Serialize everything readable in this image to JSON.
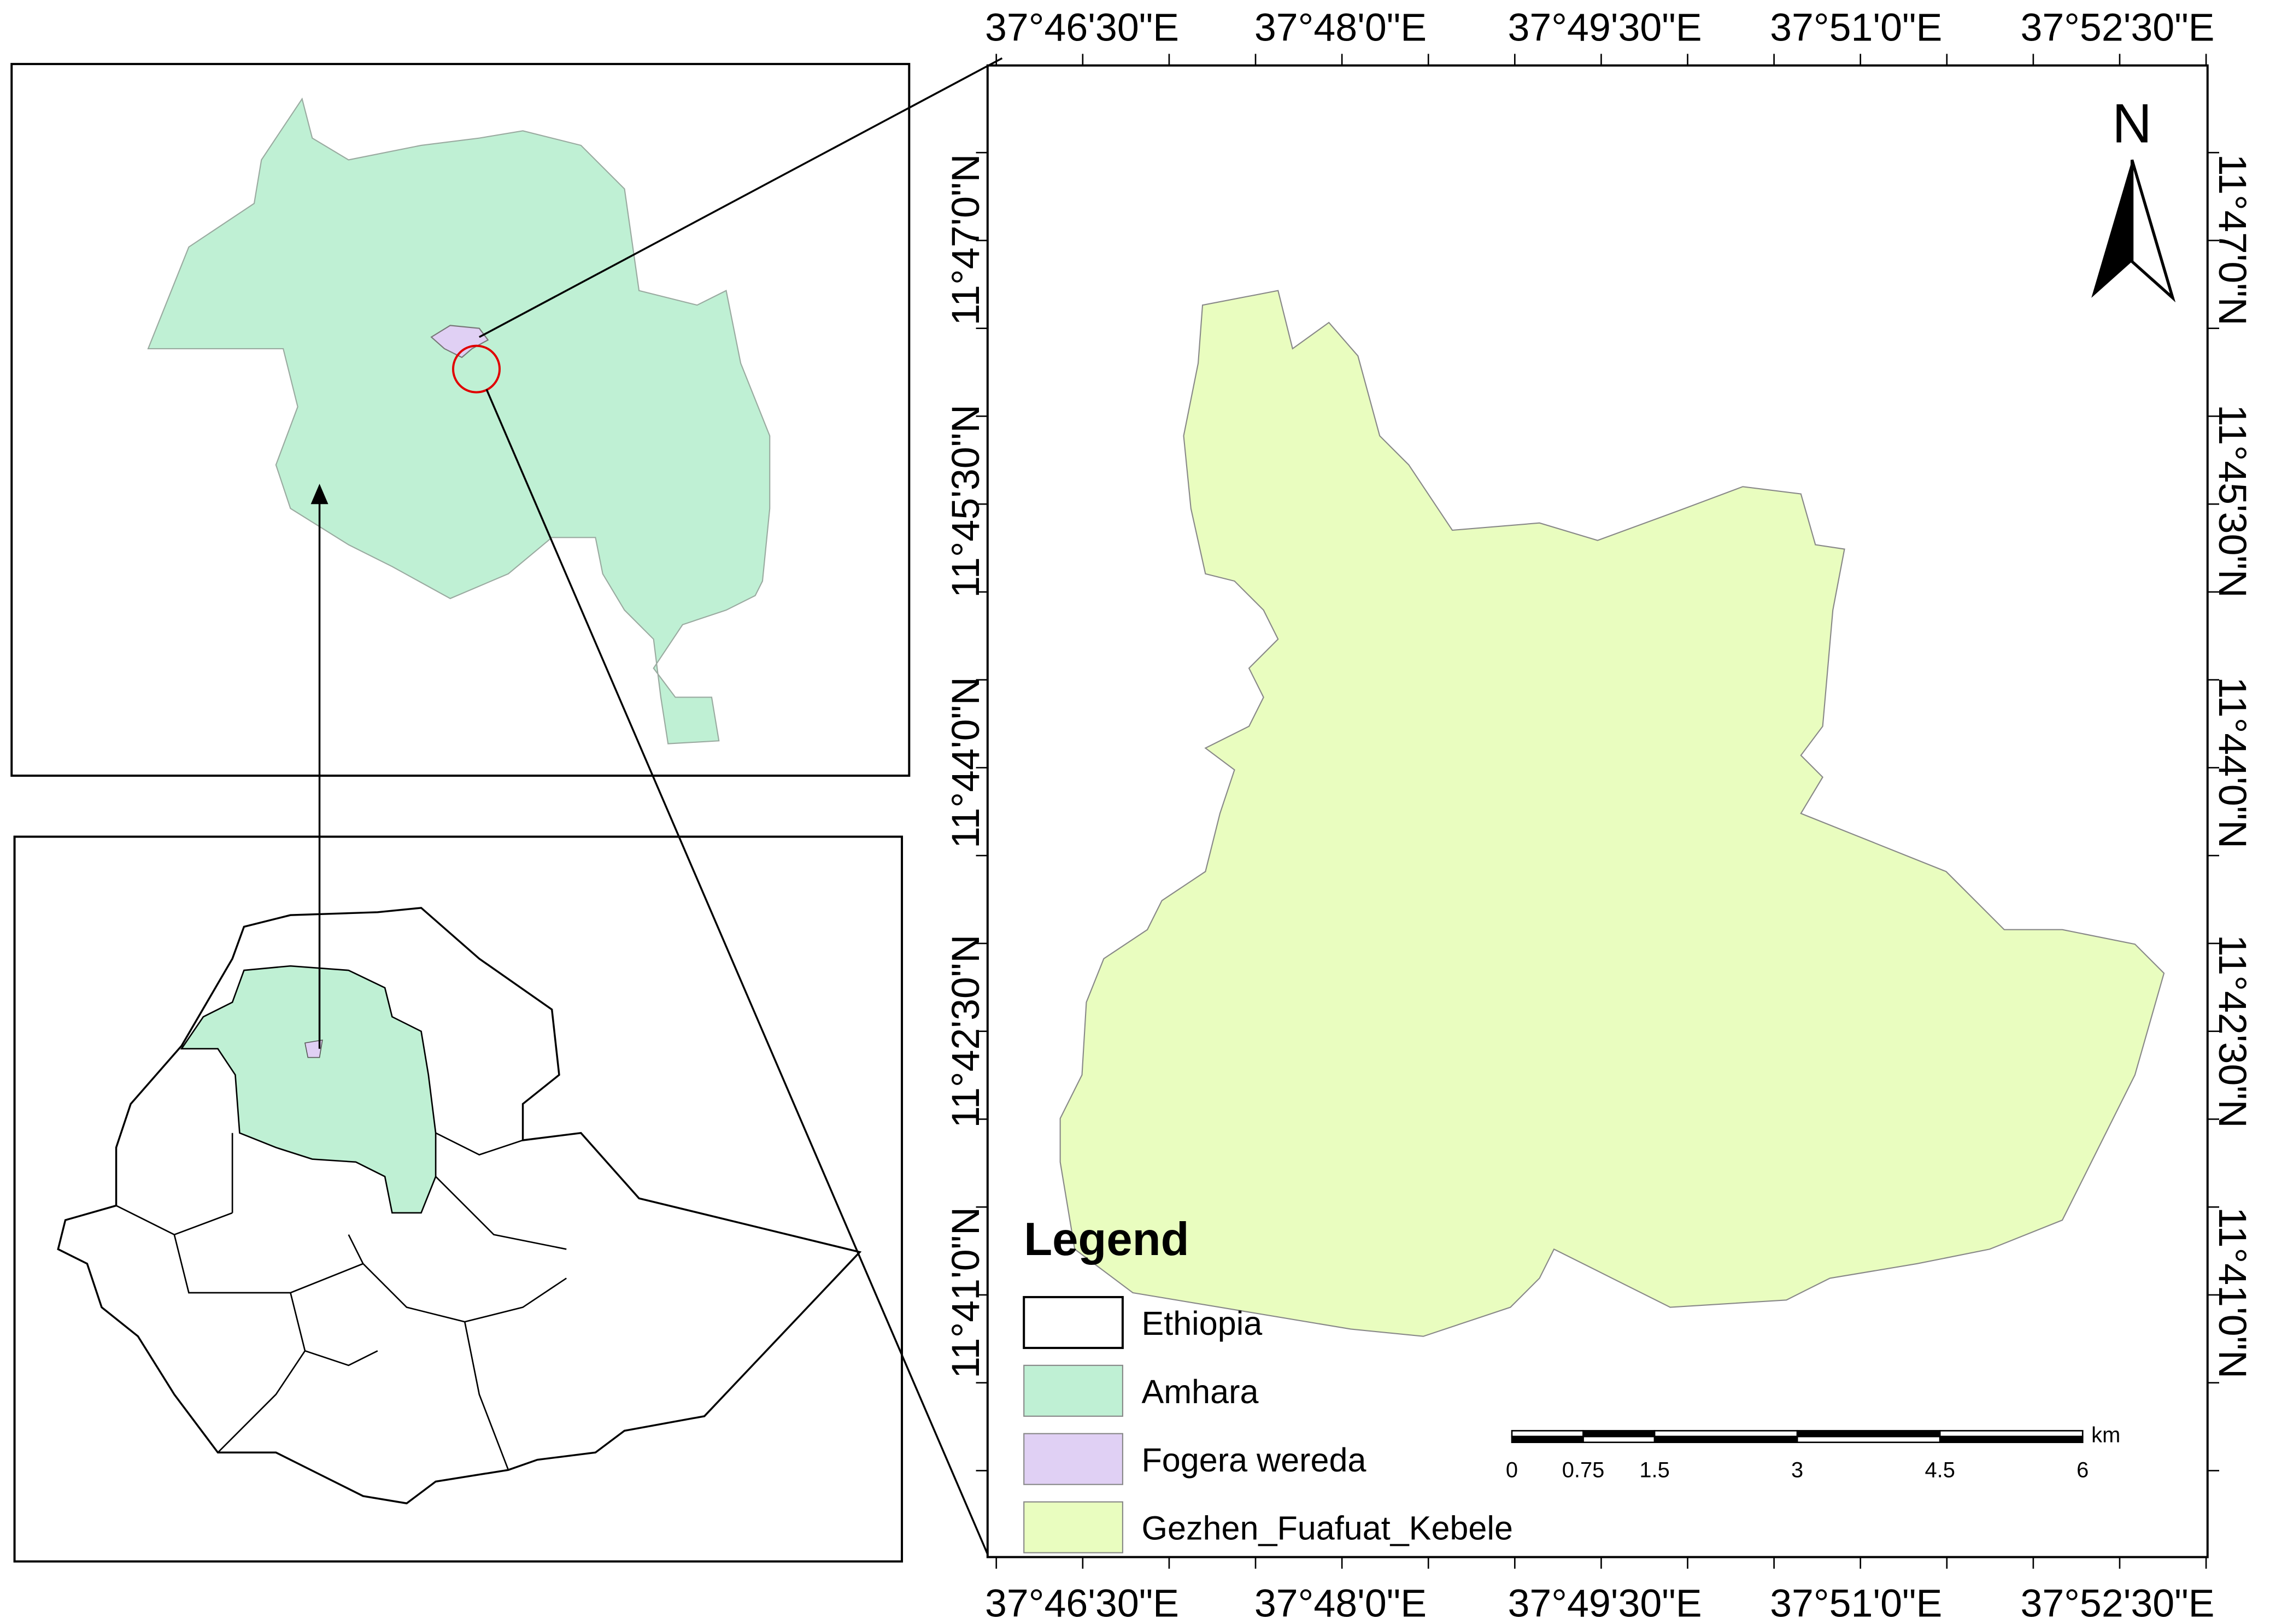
{
  "map": {
    "x_labels": [
      "37°46'30\"E",
      "37°48'0\"E",
      "37°49'30\"E",
      "37°51'0\"E",
      "37°52'30\"E"
    ],
    "y_labels": [
      "11°47'0\"N",
      "11°45'30\"N",
      "11°44'0\"N",
      "11°42'30\"N",
      "11°41'0\"N"
    ],
    "north": "N",
    "legend": {
      "title": "Legend",
      "items": [
        {
          "label": "Ethiopia",
          "color": "#ffffff"
        },
        {
          "label": "Amhara",
          "color": "#bff0d4"
        },
        {
          "label": "Fogera wereda",
          "color": "#e0d0f4"
        },
        {
          "label": "Gezhen_Fuafuat_Kebele",
          "color": "#e9fdbf"
        }
      ]
    },
    "scale_bar": {
      "unit": "km",
      "ticks": [
        0,
        0.75,
        1.5,
        3,
        4.5,
        6
      ]
    }
  }
}
